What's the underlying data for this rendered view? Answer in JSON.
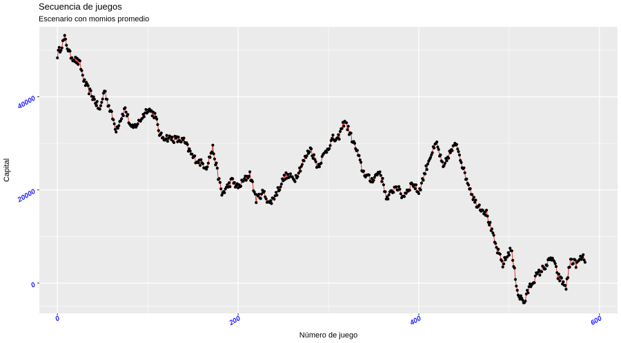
{
  "chart_data": {
    "type": "scatter",
    "title": "Secuencia de juegos",
    "subtitle": "Escenario con momios promedio",
    "xlabel": "Número de juego",
    "ylabel": "Capital",
    "xlim": [
      -20,
      620
    ],
    "ylim": [
      -6500,
      55000
    ],
    "x_ticks": [
      0,
      200,
      400,
      600
    ],
    "x_tick_labels": [
      "0",
      "200",
      "400",
      "600"
    ],
    "y_ticks": [
      0,
      20000,
      40000
    ],
    "y_tick_labels": [
      "0",
      "20000",
      "40000"
    ],
    "grid": true,
    "legend": "none",
    "point_color": "#000000",
    "line_color": "#e8302a",
    "panel_color": "#ebebeb",
    "series": [
      {
        "key_points_x": [
          0,
          8,
          14,
          25,
          30,
          42,
          47,
          52,
          57,
          65,
          75,
          82,
          90,
          100,
          108,
          114,
          140,
          150,
          165,
          172,
          182,
          193,
          200,
          213,
          220,
          228,
          235,
          243,
          252,
          263,
          280,
          288,
          295,
          305,
          310,
          318,
          332,
          338,
          347,
          357,
          365,
          375,
          382,
          393,
          400,
          412,
          420,
          427,
          433,
          442,
          450,
          462,
          475,
          486,
          493,
          502,
          510,
          517,
          522,
          530,
          537,
          548,
          554,
          563,
          568,
          575,
          580,
          585
        ],
        "key_points_y": [
          49000,
          52500,
          49000,
          47000,
          43000,
          39000,
          37000,
          41500,
          38000,
          33000,
          37500,
          33000,
          34500,
          37500,
          36000,
          31500,
          30500,
          27000,
          25000,
          29000,
          19000,
          22000,
          20500,
          23500,
          18000,
          19500,
          17000,
          19500,
          23000,
          22500,
          29000,
          25000,
          27500,
          31000,
          30500,
          35000,
          28000,
          24000,
          22000,
          24000,
          18000,
          21000,
          18500,
          21500,
          19500,
          27000,
          30000,
          24500,
          27500,
          30000,
          24000,
          17500,
          15000,
          7500,
          4000,
          7500,
          -2500,
          -4200,
          -1000,
          1500,
          3000,
          5500,
          1500,
          -800,
          5000,
          4000,
          5500,
          5000
        ],
        "point_count": 585
      }
    ]
  }
}
